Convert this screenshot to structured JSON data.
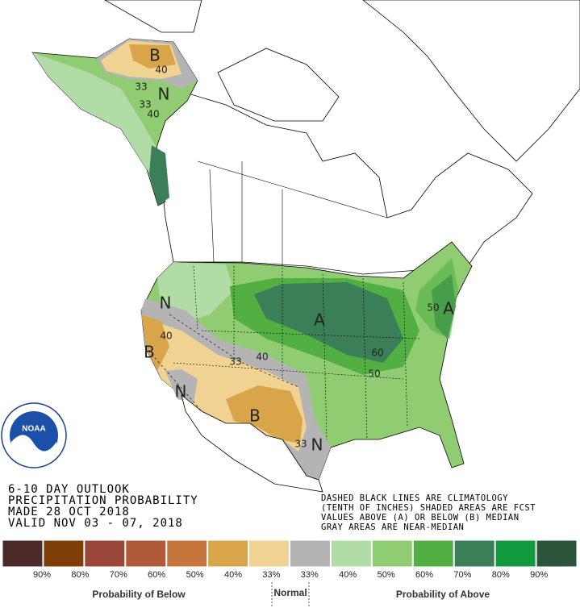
{
  "map_labels": [
    "B",
    "40",
    "33",
    "N",
    "33",
    "40",
    "N",
    "40",
    "B",
    "33",
    "40",
    "N",
    "B",
    "33",
    "N",
    "A",
    "60",
    "50",
    "50",
    "A"
  ],
  "logo": "NOAA",
  "info_lines": [
    "6-10 DAY OUTLOOK",
    "PRECIPITATION PROBABILITY",
    "MADE  28 OCT 2018",
    "VALID  NOV 03 - 07, 2018"
  ],
  "notes": [
    "DASHED BLACK LINES ARE CLIMATOLOGY",
    "(TENTH OF INCHES) SHADED AREAS ARE FCST",
    "VALUES ABOVE (A) OR BELOW (B) MEDIAN",
    "GRAY AREAS ARE NEAR-MEDIAN"
  ],
  "legend": {
    "items": [
      {
        "color": "#4d2a2a",
        "label": "90%"
      },
      {
        "color": "#7e3d06",
        "label": "80%"
      },
      {
        "color": "#9a4638",
        "label": "70%"
      },
      {
        "color": "#b05a3a",
        "label": "60%"
      },
      {
        "color": "#c6763c",
        "label": "50%"
      },
      {
        "color": "#d9a54a",
        "label": "40%"
      },
      {
        "color": "#f0d292",
        "label": "33%"
      },
      {
        "color": "#b4b4b4",
        "label": "33%"
      },
      {
        "color": "#b2dca6",
        "label": "40%"
      },
      {
        "color": "#90cc72",
        "label": "50%"
      },
      {
        "color": "#52b042",
        "label": "60%"
      },
      {
        "color": "#3a7f58",
        "label": "70%"
      },
      {
        "color": "#12993e",
        "label": "80%"
      },
      {
        "color": "#2a553a",
        "label": "90%"
      }
    ],
    "below": "Probability of Below",
    "normal": "Normal",
    "above": "Probability of Above"
  }
}
